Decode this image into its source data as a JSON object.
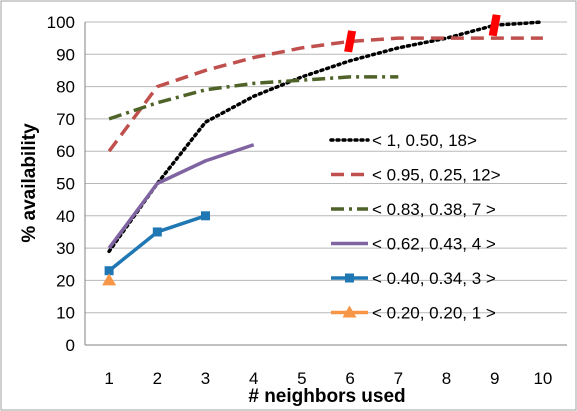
{
  "chart_data": {
    "type": "line",
    "title": "",
    "xlabel": "# neighbors used",
    "ylabel": "% availability",
    "xlim": [
      0.5,
      10.5
    ],
    "ylim": [
      0,
      100
    ],
    "xticks": [
      1,
      2,
      3,
      4,
      5,
      6,
      7,
      8,
      9,
      10
    ],
    "yticks": [
      0,
      10,
      20,
      30,
      40,
      50,
      60,
      70,
      80,
      90,
      100
    ],
    "grid": "horizontal",
    "legend": "right",
    "series": [
      {
        "name": "< 1, 0.50, 18>",
        "color": "#000000",
        "style": "dotted",
        "marker": "none",
        "x": [
          1,
          2,
          3,
          4,
          5,
          6,
          7,
          8,
          9,
          10
        ],
        "values": [
          29,
          50,
          69,
          77,
          83,
          88,
          92,
          95,
          99,
          100
        ]
      },
      {
        "name": "< 0.95, 0.25, 12>",
        "color": "#c0504d",
        "style": "dashed",
        "marker": "none",
        "x": [
          1,
          2,
          3,
          4,
          5,
          6,
          7,
          8,
          9,
          10
        ],
        "values": [
          60,
          80,
          85,
          89,
          92,
          94,
          95,
          95,
          95,
          95
        ]
      },
      {
        "name": "< 0.83, 0.38, 7 >",
        "color": "#4f6228",
        "style": "dashdot",
        "marker": "none",
        "x": [
          1,
          2,
          3,
          4,
          5,
          6,
          7
        ],
        "values": [
          70,
          75,
          79,
          81,
          82,
          83,
          83
        ]
      },
      {
        "name": "< 0.62, 0.43, 4 >",
        "color": "#8064a2",
        "style": "solid",
        "marker": "none",
        "x": [
          1,
          2,
          3,
          4
        ],
        "values": [
          30,
          50,
          57,
          62
        ]
      },
      {
        "name": "< 0.40, 0.34, 3 >",
        "color": "#1f77b4",
        "style": "solid",
        "marker": "square",
        "x": [
          1,
          2,
          3
        ],
        "values": [
          23,
          35,
          40
        ]
      },
      {
        "name": "< 0.20, 0.20, 1 >",
        "color": "#f79646",
        "style": "solid",
        "marker": "triangle",
        "x": [
          1
        ],
        "values": [
          20
        ]
      }
    ],
    "annotations": [
      {
        "type": "break-mark",
        "color": "#ff0000",
        "x": 6,
        "y": 94
      },
      {
        "type": "break-mark",
        "color": "#ff0000",
        "x": 9,
        "y": 99
      }
    ]
  }
}
